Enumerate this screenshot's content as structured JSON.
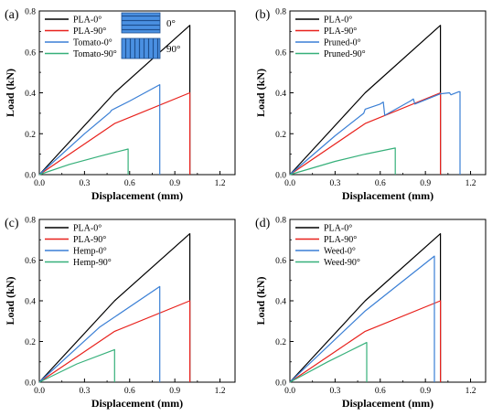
{
  "colors": {
    "pla0": "#000000",
    "pla90": "#e8211c",
    "blue": "#3a7fd5",
    "green": "#36b07a",
    "hatch_fill": "#4a90e2",
    "hatch_line": "#1e4f8f"
  },
  "chart_data": [
    {
      "type": "line",
      "panel": "(a)",
      "xlabel": "Displacement (mm)",
      "ylabel": "Load (kN)",
      "xlim": [
        0,
        1.3
      ],
      "ylim": [
        0,
        0.8
      ],
      "xticks": [
        "0.0",
        "0.3",
        "0.6",
        "0.9",
        "1.2"
      ],
      "yticks": [
        "0.0",
        "0.2",
        "0.4",
        "0.6",
        "0.8"
      ],
      "legend_position": "top-left",
      "extra_legend": [
        {
          "label": "0°",
          "pattern": "horizontal"
        },
        {
          "label": "90°",
          "pattern": "vertical"
        }
      ],
      "series": [
        {
          "name": "PLA-0°",
          "color_key": "pla0",
          "x": [
            0,
            0.5,
            1.0,
            1.0
          ],
          "y": [
            0,
            0.4,
            0.73,
            0
          ]
        },
        {
          "name": "PLA-90°",
          "color_key": "pla90",
          "x": [
            0,
            0.5,
            1.0,
            1.0
          ],
          "y": [
            0,
            0.25,
            0.4,
            0
          ]
        },
        {
          "name": "Tomato-0°",
          "color_key": "blue",
          "x": [
            0,
            0.3,
            0.47,
            0.48,
            0.6,
            0.8,
            0.8
          ],
          "y": [
            0,
            0.2,
            0.305,
            0.315,
            0.36,
            0.44,
            0
          ]
        },
        {
          "name": "Tomato-90°",
          "color_key": "green",
          "x": [
            0,
            0.2,
            0.4,
            0.59,
            0.59
          ],
          "y": [
            0,
            0.05,
            0.09,
            0.125,
            0
          ]
        }
      ]
    },
    {
      "type": "line",
      "panel": "(b)",
      "xlabel": "Displacement (mm)",
      "ylabel": "Load (kN)",
      "xlim": [
        0,
        1.3
      ],
      "ylim": [
        0,
        0.8
      ],
      "xticks": [
        "0.0",
        "0.3",
        "0.6",
        "0.9",
        "1.2"
      ],
      "yticks": [
        "0.0",
        "0.2",
        "0.4",
        "0.6",
        "0.8"
      ],
      "legend_position": "top-left",
      "series": [
        {
          "name": "PLA-0°",
          "color_key": "pla0",
          "x": [
            0,
            0.5,
            1.0,
            1.0
          ],
          "y": [
            0,
            0.4,
            0.73,
            0
          ]
        },
        {
          "name": "PLA-90°",
          "color_key": "pla90",
          "x": [
            0,
            0.5,
            1.0,
            1.0
          ],
          "y": [
            0,
            0.25,
            0.4,
            0
          ]
        },
        {
          "name": "Pruned-0°",
          "color_key": "blue",
          "x": [
            0,
            0.3,
            0.49,
            0.5,
            0.6,
            0.62,
            0.63,
            0.8,
            0.82,
            0.83,
            1.0,
            1.06,
            1.07,
            1.12,
            1.13,
            1.13
          ],
          "y": [
            0,
            0.19,
            0.3,
            0.32,
            0.345,
            0.355,
            0.29,
            0.36,
            0.37,
            0.345,
            0.395,
            0.4,
            0.39,
            0.405,
            0.405,
            0
          ]
        },
        {
          "name": "Pruned-90°",
          "color_key": "green",
          "x": [
            0,
            0.3,
            0.5,
            0.7,
            0.7
          ],
          "y": [
            0,
            0.065,
            0.1,
            0.13,
            0
          ]
        }
      ]
    },
    {
      "type": "line",
      "panel": "(c)",
      "xlabel": "Displacement (mm)",
      "ylabel": "Load (kN)",
      "xlim": [
        0,
        1.3
      ],
      "ylim": [
        0,
        0.8
      ],
      "xticks": [
        "0.0",
        "0.3",
        "0.6",
        "0.9",
        "1.2"
      ],
      "yticks": [
        "0.0",
        "0.2",
        "0.4",
        "0.6",
        "0.8"
      ],
      "legend_position": "top-left",
      "series": [
        {
          "name": "PLA-0°",
          "color_key": "pla0",
          "x": [
            0,
            0.5,
            1.0,
            1.0
          ],
          "y": [
            0,
            0.4,
            0.73,
            0
          ]
        },
        {
          "name": "PLA-90°",
          "color_key": "pla90",
          "x": [
            0,
            0.5,
            1.0,
            1.0
          ],
          "y": [
            0,
            0.25,
            0.4,
            0
          ]
        },
        {
          "name": "Hemp-0°",
          "color_key": "blue",
          "x": [
            0,
            0.4,
            0.8,
            0.8
          ],
          "y": [
            0,
            0.27,
            0.47,
            0
          ]
        },
        {
          "name": "Hemp-90°",
          "color_key": "green",
          "x": [
            0,
            0.25,
            0.5,
            0.5
          ],
          "y": [
            0,
            0.09,
            0.16,
            0
          ]
        }
      ]
    },
    {
      "type": "line",
      "panel": "(d)",
      "xlabel": "Displacement (mm)",
      "ylabel": "Load (kN)",
      "xlim": [
        0,
        1.3
      ],
      "ylim": [
        0,
        0.8
      ],
      "xticks": [
        "0.0",
        "0.3",
        "0.6",
        "0.9",
        "1.2"
      ],
      "yticks": [
        "0.0",
        "0.2",
        "0.4",
        "0.6",
        "0.8"
      ],
      "legend_position": "top-left",
      "series": [
        {
          "name": "PLA-0°",
          "color_key": "pla0",
          "x": [
            0,
            0.5,
            1.0,
            1.0
          ],
          "y": [
            0,
            0.4,
            0.73,
            0
          ]
        },
        {
          "name": "PLA-90°",
          "color_key": "pla90",
          "x": [
            0,
            0.5,
            1.0,
            1.0
          ],
          "y": [
            0,
            0.25,
            0.4,
            0
          ]
        },
        {
          "name": "Weed-0°",
          "color_key": "blue",
          "x": [
            0,
            0.5,
            0.96,
            0.96
          ],
          "y": [
            0,
            0.35,
            0.62,
            0
          ]
        },
        {
          "name": "Weed-90°",
          "color_key": "green",
          "x": [
            0,
            0.25,
            0.51,
            0.51
          ],
          "y": [
            0,
            0.1,
            0.195,
            0
          ]
        }
      ]
    }
  ]
}
